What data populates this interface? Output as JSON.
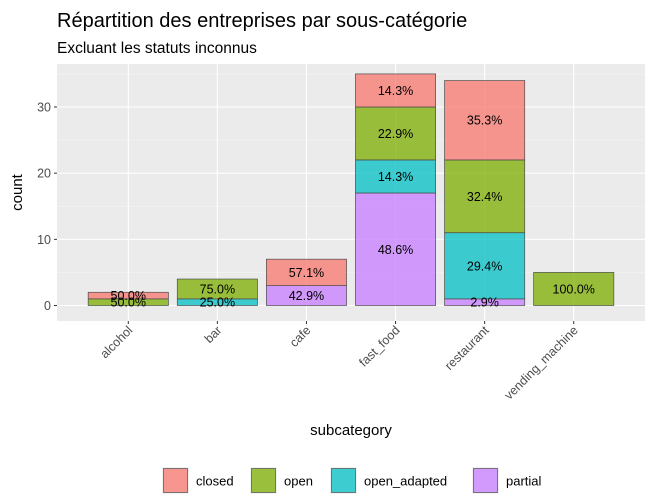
{
  "chart_data": {
    "type": "bar",
    "stacked": true,
    "title": "Répartition des entreprises par sous-catégorie",
    "subtitle": "Excluant les statuts inconnus",
    "xlabel": "subcategory",
    "ylabel": "count",
    "ylim": [
      0,
      36.5
    ],
    "yticks": [
      "0",
      "10",
      "20",
      "30"
    ],
    "grid": true,
    "legend_position": "bottom",
    "categories": [
      "alcohol",
      "bar",
      "cafe",
      "fast_food",
      "restaurant",
      "vending_machine"
    ],
    "series": [
      {
        "name": "closed",
        "color": "#F8766D",
        "values": [
          1,
          0,
          4,
          5,
          12,
          0
        ],
        "labels": [
          "50.0%",
          "",
          "57.1%",
          "14.3%",
          "35.3%",
          ""
        ]
      },
      {
        "name": "open",
        "color": "#7CAE00",
        "values": [
          1,
          3,
          0,
          8,
          11,
          5
        ],
        "labels": [
          "50.0%",
          "75.0%",
          "",
          "22.9%",
          "32.4%",
          "100.0%"
        ]
      },
      {
        "name": "open_adapted",
        "color": "#00BFC4",
        "values": [
          0,
          1,
          0,
          5,
          10,
          0
        ],
        "labels": [
          "",
          "25.0%",
          "",
          "14.3%",
          "29.4%",
          ""
        ]
      },
      {
        "name": "partial",
        "color": "#C77CFF",
        "values": [
          0,
          0,
          3,
          17,
          1,
          0
        ],
        "labels": [
          "",
          "",
          "42.9%",
          "48.6%",
          "2.9%",
          ""
        ]
      }
    ]
  }
}
